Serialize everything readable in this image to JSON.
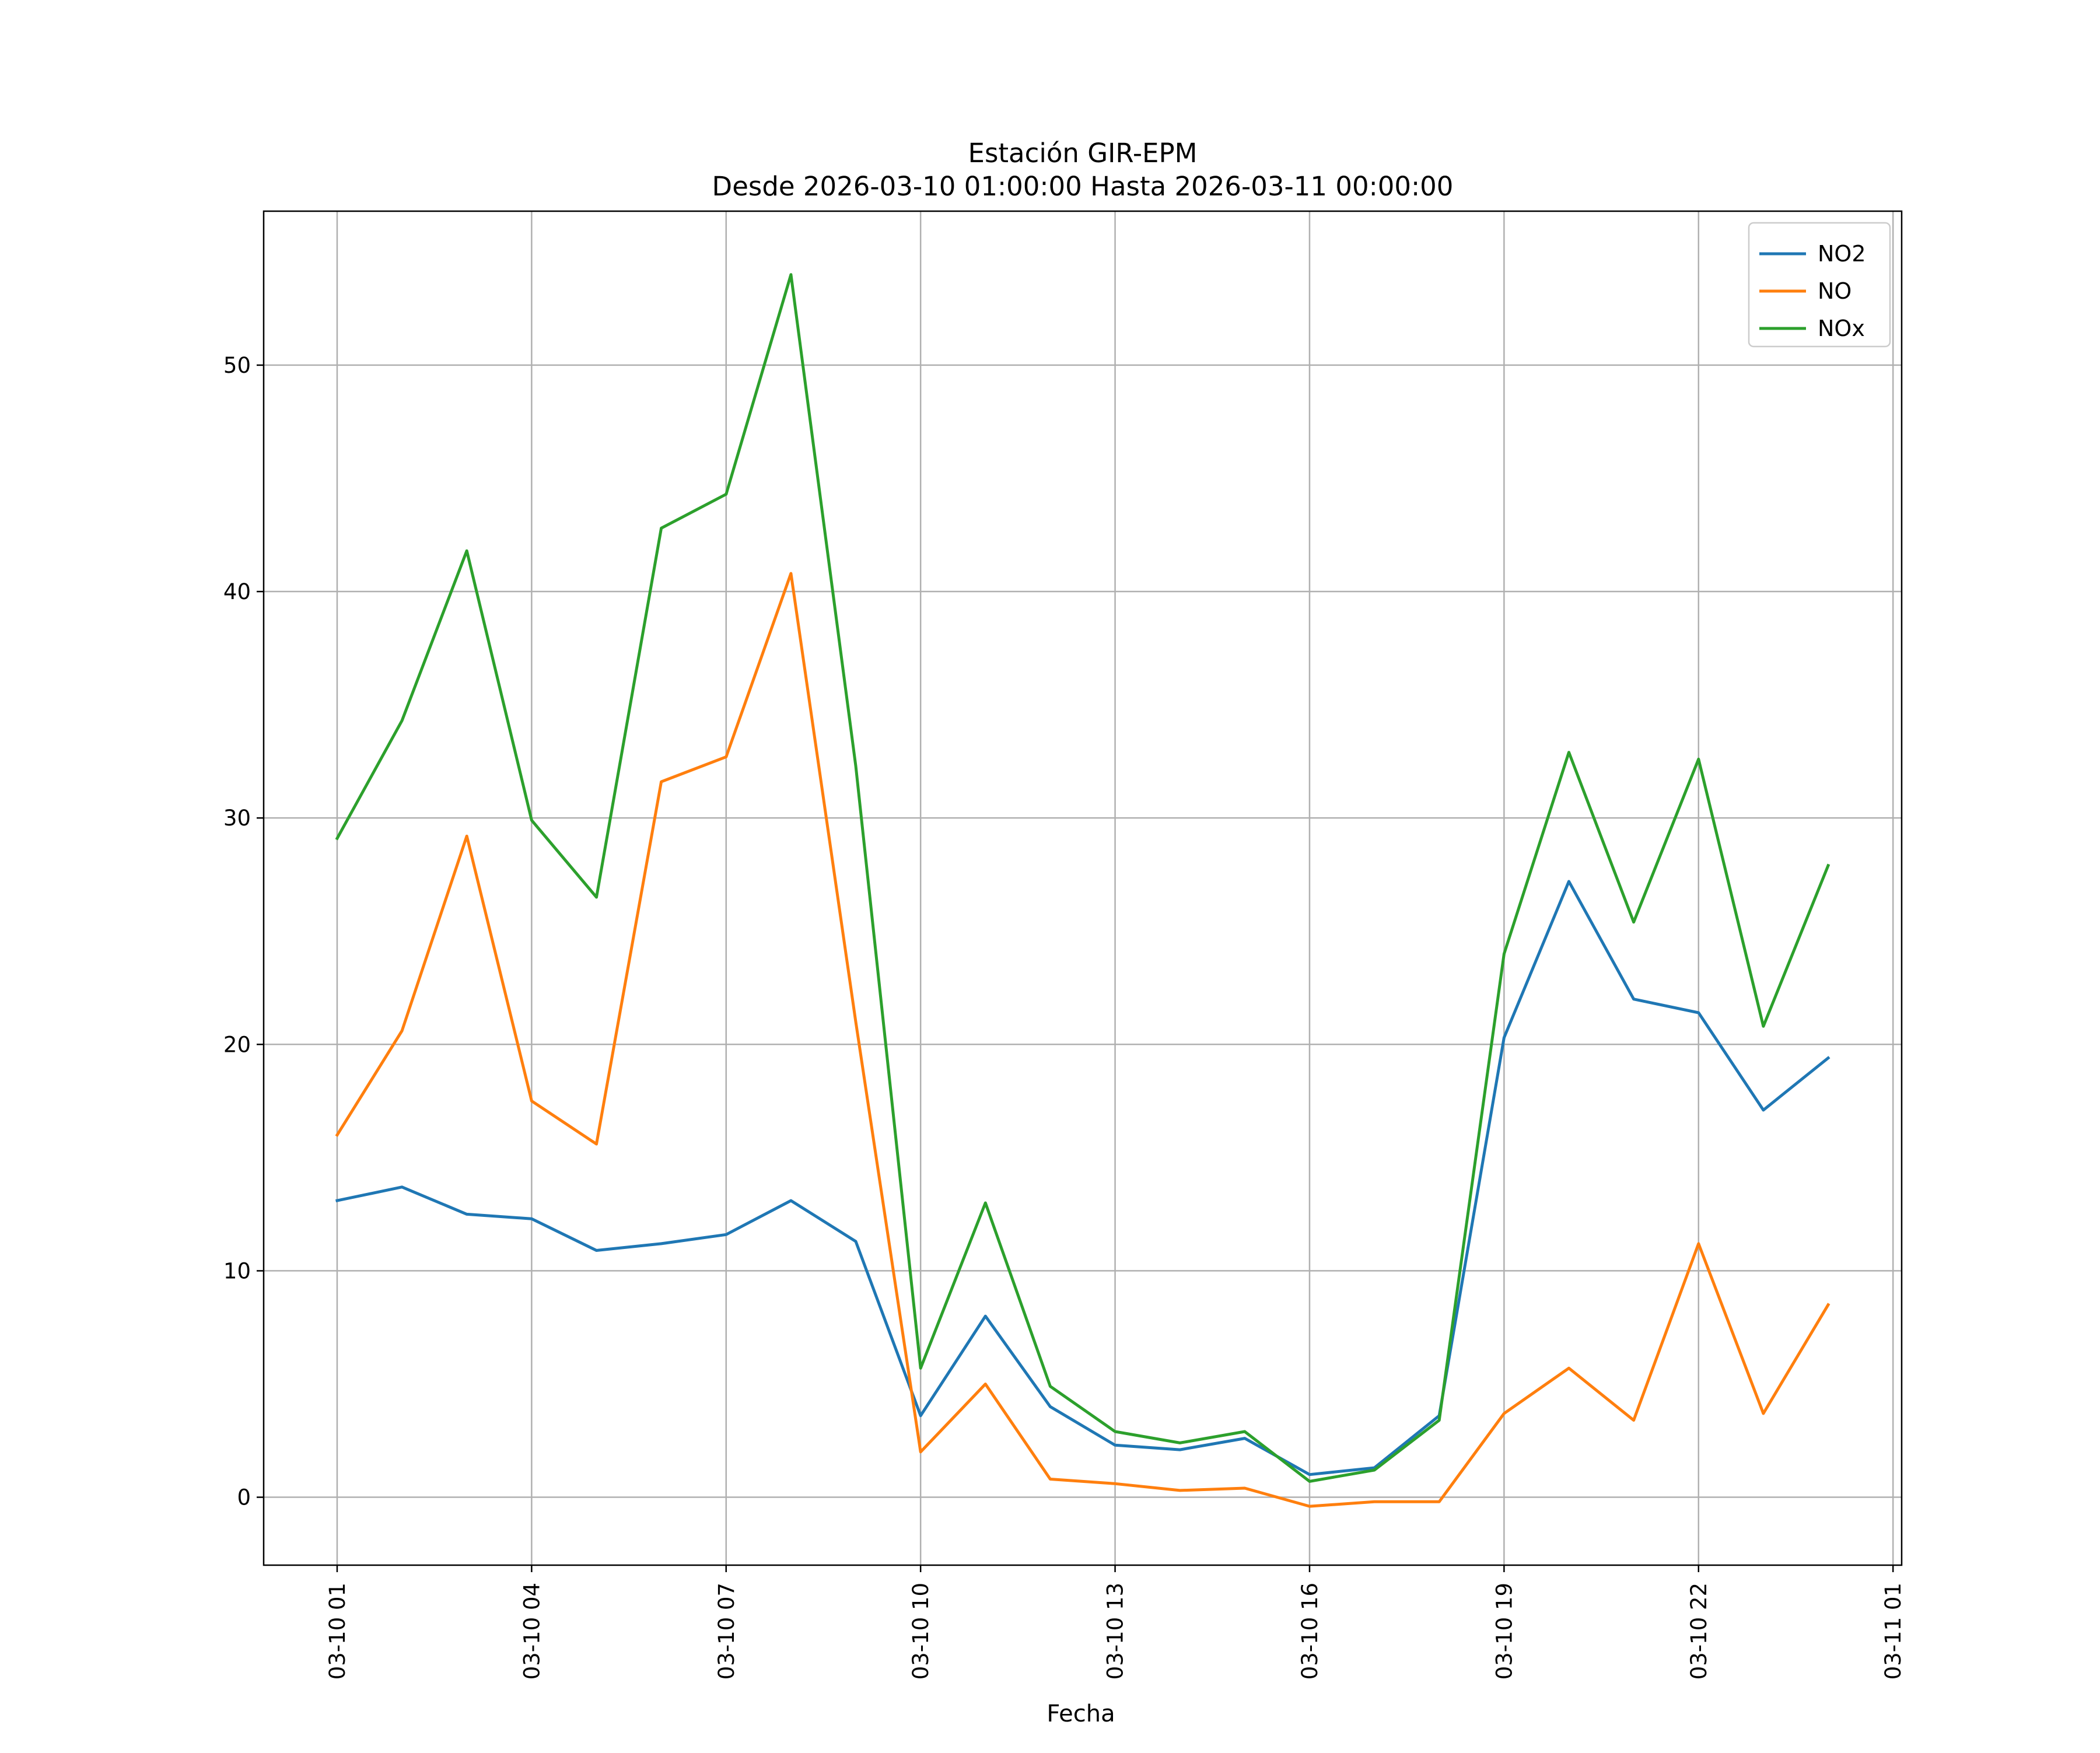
{
  "chart_data": {
    "type": "line",
    "title": "Estación GIR-EPM",
    "subtitle": "Desde 2026-03-10 01:00:00 Hasta 2026-03-11 00:00:00",
    "xlabel": "Fecha",
    "ylabel": "",
    "x": [
      "2026-03-10 01:00",
      "2026-03-10 02:00",
      "2026-03-10 03:00",
      "2026-03-10 04:00",
      "2026-03-10 05:00",
      "2026-03-10 06:00",
      "2026-03-10 07:00",
      "2026-03-10 08:00",
      "2026-03-10 09:00",
      "2026-03-10 10:00",
      "2026-03-10 11:00",
      "2026-03-10 12:00",
      "2026-03-10 13:00",
      "2026-03-10 14:00",
      "2026-03-10 15:00",
      "2026-03-10 16:00",
      "2026-03-10 17:00",
      "2026-03-10 18:00",
      "2026-03-10 19:00",
      "2026-03-10 20:00",
      "2026-03-10 21:00",
      "2026-03-10 22:00",
      "2026-03-10 23:00",
      "2026-03-11 00:00"
    ],
    "x_ticks": [
      "03-10 01",
      "03-10 04",
      "03-10 07",
      "03-10 10",
      "03-10 13",
      "03-10 16",
      "03-10 19",
      "03-10 22",
      "03-11 01"
    ],
    "x_range": [
      "2026-03-09 23:52",
      "2026-03-11 01:08"
    ],
    "y_ticks": [
      0,
      10,
      20,
      30,
      40,
      50
    ],
    "ylim": [
      -3.0,
      56.8
    ],
    "grid": true,
    "legend_position": "top-right",
    "series": [
      {
        "name": "NO2",
        "color": "#1f77b4",
        "values": [
          13.1,
          13.7,
          12.5,
          12.3,
          10.9,
          11.2,
          11.6,
          13.1,
          11.3,
          3.6,
          8.0,
          4.0,
          2.3,
          2.1,
          2.6,
          1.0,
          1.3,
          3.6,
          20.3,
          27.2,
          22.0,
          21.4,
          17.1,
          19.4
        ]
      },
      {
        "name": "NO",
        "color": "#ff7f0e",
        "values": [
          16.0,
          20.6,
          29.2,
          17.5,
          15.6,
          31.6,
          32.7,
          40.8,
          21.0,
          2.0,
          5.0,
          0.8,
          0.6,
          0.3,
          0.4,
          -0.4,
          -0.2,
          -0.2,
          3.7,
          5.7,
          3.4,
          11.2,
          3.7,
          8.5
        ]
      },
      {
        "name": "NOx",
        "color": "#2ca02c",
        "values": [
          29.1,
          34.3,
          41.8,
          29.9,
          26.5,
          42.8,
          44.3,
          54.0,
          32.3,
          5.7,
          13.0,
          4.9,
          2.9,
          2.4,
          2.9,
          0.7,
          1.2,
          3.4,
          24.0,
          32.9,
          25.4,
          32.6,
          20.8,
          27.9
        ]
      }
    ]
  }
}
